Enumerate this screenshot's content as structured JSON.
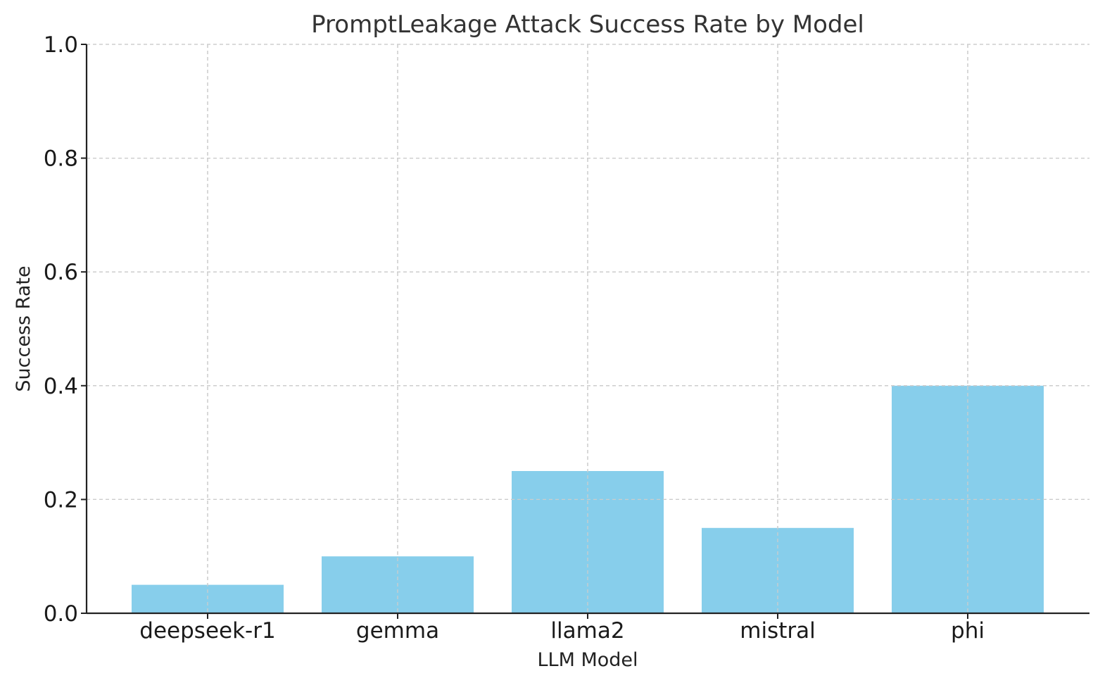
{
  "chart_data": {
    "type": "bar",
    "title": "PromptLeakage Attack Success Rate by Model",
    "xlabel": "LLM Model",
    "ylabel": "Success Rate",
    "categories": [
      "deepseek-r1",
      "gemma",
      "llama2",
      "mistral",
      "phi"
    ],
    "values": [
      0.05,
      0.1,
      0.25,
      0.15,
      0.4
    ],
    "ylim": [
      0,
      1.0
    ],
    "yticks": [
      "0.0",
      "0.2",
      "0.4",
      "0.6",
      "0.8",
      "1.0"
    ],
    "grid": true,
    "bar_color": "#87CEEB",
    "legend": false
  }
}
